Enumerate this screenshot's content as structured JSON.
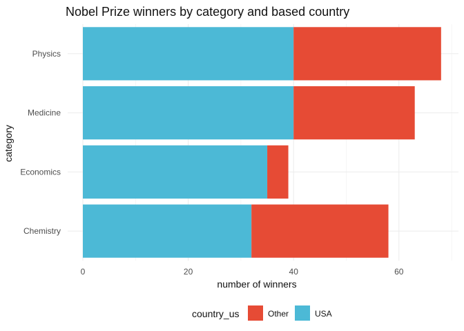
{
  "chart_data": {
    "type": "bar",
    "orientation": "horizontal",
    "stacked": true,
    "title": "Nobel Prize winners by category and based country",
    "xlabel": "number of winners",
    "ylabel": "category",
    "categories": [
      "Chemistry",
      "Economics",
      "Medicine",
      "Physics"
    ],
    "series": [
      {
        "name": "USA",
        "color": "#4cb9d6",
        "values": [
          32,
          35,
          40,
          40
        ]
      },
      {
        "name": "Other",
        "color": "#e64b35",
        "values": [
          26,
          4,
          23,
          28
        ]
      }
    ],
    "xlim": [
      0,
      70
    ],
    "x_ticks": [
      0,
      20,
      40,
      60
    ],
    "x_tick_labels": [
      "0",
      "20",
      "40",
      "60"
    ],
    "grid": true,
    "legend": {
      "title": "country_us",
      "position": "bottom",
      "entries": [
        {
          "label": "Other",
          "color": "#e64b35"
        },
        {
          "label": "USA",
          "color": "#4cb9d6"
        }
      ]
    }
  }
}
